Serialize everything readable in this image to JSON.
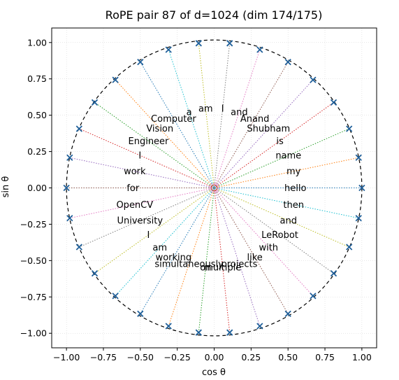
{
  "chart_data": {
    "type": "scatter",
    "title": "RoPE pair 87 of d=1024 (dim 174/175)",
    "xlabel": "cos θ",
    "ylabel": "sin θ",
    "xlim": [
      -1.1,
      1.1
    ],
    "ylim": [
      -1.1,
      1.1
    ],
    "xticks": [
      -1.0,
      -0.75,
      -0.5,
      -0.25,
      0.0,
      0.25,
      0.5,
      0.75,
      1.0
    ],
    "yticks": [
      -1.0,
      -0.75,
      -0.5,
      -0.25,
      0.0,
      0.25,
      0.5,
      0.75,
      1.0
    ],
    "xtick_labels": [
      "−1.00",
      "−0.75",
      "−0.50",
      "−0.25",
      "0.00",
      "0.25",
      "0.50",
      "0.75",
      "1.00"
    ],
    "ytick_labels": [
      "−1.00",
      "−0.75",
      "−0.50",
      "−0.25",
      "0.00",
      "0.25",
      "0.50",
      "0.75",
      "1.00"
    ],
    "grid": true,
    "unit_circle": true,
    "marker_color": "#1f5f99",
    "points": [
      {
        "token": "hello",
        "x": 1.0,
        "y": 0.0
      },
      {
        "token": "my",
        "x": 0.978,
        "y": 0.208
      },
      {
        "token": "name",
        "x": 0.914,
        "y": 0.407
      },
      {
        "token": "is",
        "x": 0.809,
        "y": 0.588
      },
      {
        "token": "Shubham",
        "x": 0.669,
        "y": 0.743
      },
      {
        "token": "Anand",
        "x": 0.5,
        "y": 0.866
      },
      {
        "token": "and",
        "x": 0.309,
        "y": 0.951
      },
      {
        "token": "I",
        "x": 0.105,
        "y": 0.995
      },
      {
        "token": "am",
        "x": -0.105,
        "y": 0.995
      },
      {
        "token": "a",
        "x": -0.309,
        "y": 0.951
      },
      {
        "token": "Computer",
        "x": -0.5,
        "y": 0.866
      },
      {
        "token": "Vision",
        "x": -0.669,
        "y": 0.743
      },
      {
        "token": "Engineer",
        "x": -0.809,
        "y": 0.588
      },
      {
        "token": "I",
        "x": -0.914,
        "y": 0.407
      },
      {
        "token": "work",
        "x": -0.978,
        "y": 0.208
      },
      {
        "token": "for",
        "x": -1.0,
        "y": 0.0
      },
      {
        "token": "OpenCV",
        "x": -0.978,
        "y": -0.208
      },
      {
        "token": "University",
        "x": -0.914,
        "y": -0.407
      },
      {
        "token": "I",
        "x": -0.809,
        "y": -0.588
      },
      {
        "token": "am",
        "x": -0.669,
        "y": -0.743
      },
      {
        "token": "working",
        "x": -0.5,
        "y": -0.866
      },
      {
        "token": "simultaneously",
        "x": -0.309,
        "y": -0.951
      },
      {
        "token": "on",
        "x": -0.105,
        "y": -0.995
      },
      {
        "token": "multiple",
        "x": 0.105,
        "y": -0.995
      },
      {
        "token": "projects",
        "x": 0.309,
        "y": -0.951
      },
      {
        "token": "like",
        "x": 0.5,
        "y": -0.866
      },
      {
        "token": "with",
        "x": 0.669,
        "y": -0.743
      },
      {
        "token": "LeRobot",
        "x": 0.809,
        "y": -0.588
      },
      {
        "token": "and",
        "x": 0.914,
        "y": -0.407
      },
      {
        "token": "then",
        "x": 0.978,
        "y": -0.208
      }
    ],
    "line_colors": [
      "#1f77b4",
      "#ff7f0e",
      "#2ca02c",
      "#d62728",
      "#9467bd",
      "#8c564b",
      "#e377c2",
      "#7f7f7f",
      "#bcbd22",
      "#17becf"
    ]
  }
}
